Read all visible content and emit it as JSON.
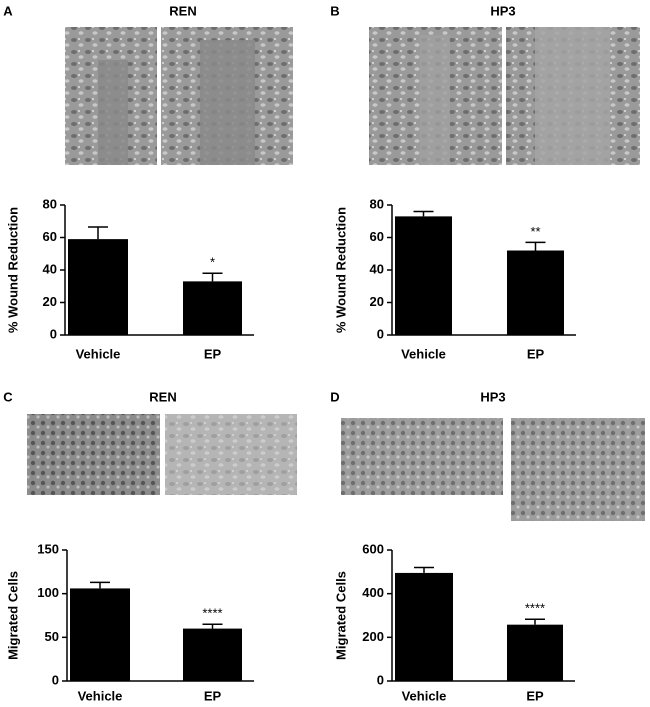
{
  "chart_data": [
    {
      "type": "bar",
      "panel": "A",
      "title": "REN",
      "ylabel": "% Wound Reduction",
      "categories": [
        "Vehicle",
        "EP"
      ],
      "values": [
        59,
        33
      ],
      "errors": [
        7.5,
        5
      ],
      "significance": [
        null,
        "*"
      ],
      "color": "#000000",
      "ylim": [
        0,
        80
      ],
      "yticks": [
        0,
        20,
        40,
        60,
        80
      ]
    },
    {
      "type": "bar",
      "panel": "B",
      "title": "HP3",
      "ylabel": "% Wound Reduction",
      "categories": [
        "Vehicle",
        "EP"
      ],
      "values": [
        73,
        52
      ],
      "errors": [
        3,
        5
      ],
      "significance": [
        null,
        "**"
      ],
      "color": "#000000",
      "ylim": [
        0,
        80
      ],
      "yticks": [
        0,
        20,
        40,
        60,
        80
      ]
    },
    {
      "type": "bar",
      "panel": "C",
      "title": "REN",
      "ylabel": "Migrated Cells",
      "categories": [
        "Vehicle",
        "EP"
      ],
      "values": [
        106,
        60
      ],
      "errors": [
        7,
        5
      ],
      "significance": [
        null,
        "****"
      ],
      "color": "#000000",
      "ylim": [
        0,
        150
      ],
      "yticks": [
        0,
        50,
        100,
        150
      ]
    },
    {
      "type": "bar",
      "panel": "D",
      "title": "HP3",
      "ylabel": "Migrated Cells",
      "categories": [
        "Vehicle",
        "EP"
      ],
      "values": [
        495,
        258
      ],
      "errors": [
        25,
        25
      ],
      "significance": [
        null,
        "****"
      ],
      "color": "#000000",
      "ylim": [
        0,
        600
      ],
      "yticks": [
        0,
        200,
        400,
        600
      ]
    }
  ]
}
